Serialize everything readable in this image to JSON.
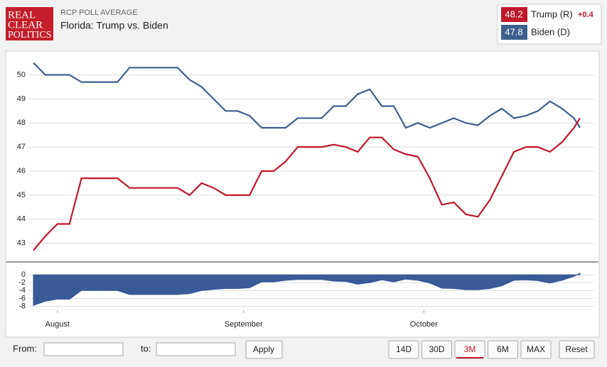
{
  "header": {
    "logo": [
      "REAL",
      "CLEAR",
      "POLITICS"
    ],
    "kicker": "RCP POLL AVERAGE",
    "title": "Florida: Trump vs. Biden"
  },
  "legend": [
    {
      "value": "48.2",
      "name": "Trump (R)",
      "change": "+0.4",
      "color": "#c0182b"
    },
    {
      "value": "47.8",
      "name": "Biden (D)",
      "color": "#3e5f8f"
    }
  ],
  "chart_data": [
    {
      "type": "line",
      "xlim": [
        0,
        91
      ],
      "ylim": [
        42.25,
        50.9
      ],
      "yticks": [
        43,
        44,
        45,
        46,
        47,
        48,
        49,
        50
      ],
      "grid": true,
      "x": [
        0,
        2,
        4,
        6,
        8,
        10,
        12,
        14,
        16,
        18,
        20,
        22,
        24,
        26,
        28,
        30,
        32,
        34,
        36,
        38,
        40,
        42,
        44,
        46,
        48,
        50,
        52,
        54,
        56,
        58,
        60,
        62,
        64,
        66,
        68,
        70,
        72,
        74,
        76,
        78,
        80,
        82,
        84,
        86,
        88,
        90,
        91
      ],
      "series": [
        {
          "name": "Biden (D)",
          "color": "#3e5f8f",
          "values": [
            50.5,
            50.0,
            50.0,
            50.0,
            49.7,
            49.7,
            49.7,
            49.7,
            50.3,
            50.3,
            50.3,
            50.3,
            50.3,
            49.8,
            49.5,
            49.0,
            48.5,
            48.5,
            48.3,
            47.8,
            47.8,
            47.8,
            48.2,
            48.2,
            48.2,
            48.7,
            48.7,
            49.2,
            49.4,
            48.7,
            48.7,
            47.8,
            48.0,
            47.8,
            48.0,
            48.2,
            48.0,
            47.9,
            48.3,
            48.6,
            48.2,
            48.3,
            48.5,
            48.9,
            48.6,
            48.2,
            47.8
          ]
        },
        {
          "name": "Trump (R)",
          "color": "#c0182b",
          "values": [
            42.7,
            43.3,
            43.8,
            43.8,
            45.7,
            45.7,
            45.7,
            45.7,
            45.3,
            45.3,
            45.3,
            45.3,
            45.3,
            45.0,
            45.5,
            45.3,
            45.0,
            45.0,
            45.0,
            46.0,
            46.0,
            46.4,
            47.0,
            47.0,
            47.0,
            47.1,
            47.0,
            46.8,
            47.4,
            47.4,
            46.9,
            46.7,
            46.6,
            45.7,
            44.6,
            44.7,
            44.2,
            44.1,
            44.8,
            45.8,
            46.8,
            47.0,
            47.0,
            46.8,
            47.2,
            47.8,
            48.2
          ]
        }
      ]
    },
    {
      "type": "area",
      "xlim": [
        0,
        91
      ],
      "ylim": [
        -9,
        2
      ],
      "yticks": [
        0,
        -2,
        -4,
        -6,
        -8
      ],
      "grid": true,
      "color": "#3a5a98",
      "xticks": [
        {
          "value": 4,
          "label": "August"
        },
        {
          "value": 35,
          "label": "September"
        },
        {
          "value": 65,
          "label": "October"
        }
      ],
      "x": [
        0,
        2,
        4,
        6,
        8,
        10,
        12,
        14,
        16,
        18,
        20,
        22,
        24,
        26,
        28,
        30,
        32,
        34,
        36,
        38,
        40,
        42,
        44,
        46,
        48,
        50,
        52,
        54,
        56,
        58,
        60,
        62,
        64,
        66,
        68,
        70,
        72,
        74,
        76,
        78,
        80,
        82,
        84,
        86,
        88,
        90,
        91
      ],
      "values": [
        -7.8,
        -6.7,
        -6.2,
        -6.2,
        -4.0,
        -4.0,
        -4.0,
        -4.0,
        -5.0,
        -5.0,
        -5.0,
        -5.0,
        -5.0,
        -4.8,
        -4.0,
        -3.7,
        -3.5,
        -3.5,
        -3.3,
        -1.8,
        -1.8,
        -1.4,
        -1.2,
        -1.2,
        -1.2,
        -1.6,
        -1.7,
        -2.4,
        -2.0,
        -1.3,
        -1.8,
        -1.1,
        -1.4,
        -2.1,
        -3.4,
        -3.5,
        -3.8,
        -3.8,
        -3.5,
        -2.8,
        -1.4,
        -1.3,
        -1.5,
        -2.1,
        -1.4,
        -0.4,
        0.4
      ]
    }
  ],
  "controls": {
    "from_label": "From:",
    "to_label": "to:",
    "apply": "Apply",
    "ranges": [
      "14D",
      "30D",
      "3M",
      "6M",
      "MAX"
    ],
    "reset": "Reset",
    "active": "3M"
  }
}
